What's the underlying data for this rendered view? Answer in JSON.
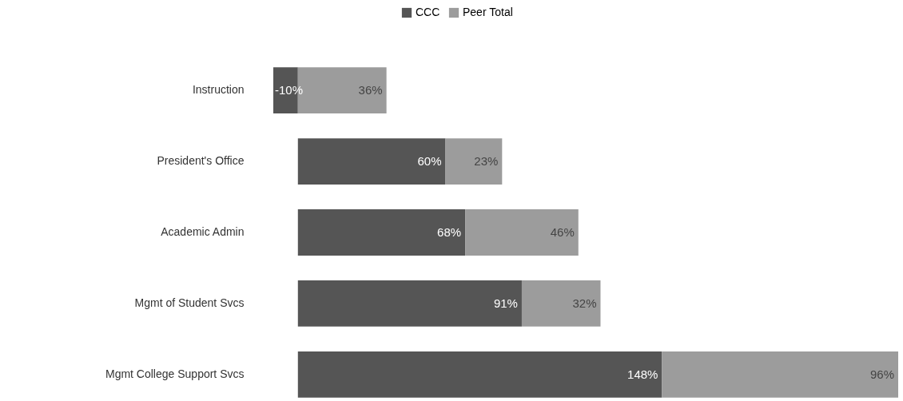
{
  "chart_data": {
    "type": "bar",
    "orientation": "horizontal",
    "stacked": true,
    "categories": [
      "Instruction",
      "President's Office",
      "Academic Admin",
      "Mgmt of Student Svcs",
      "Mgmt College Support Svcs"
    ],
    "series": [
      {
        "name": "CCC",
        "color": "#555555",
        "values": [
          -10,
          60,
          68,
          91,
          148
        ],
        "value_labels": [
          "-10%",
          "60%",
          "68%",
          "91%",
          "148%"
        ]
      },
      {
        "name": "Peer Total",
        "color": "#9c9c9c",
        "values": [
          36,
          23,
          46,
          32,
          96
        ],
        "value_labels": [
          "36%",
          "23%",
          "46%",
          "32%",
          "96%"
        ]
      }
    ],
    "legend": "top",
    "grid": false
  }
}
